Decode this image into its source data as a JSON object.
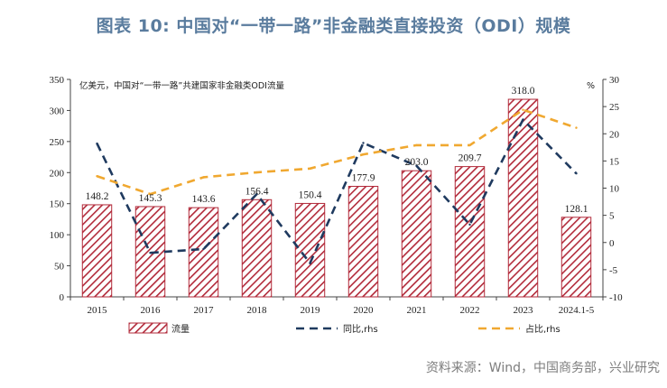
{
  "title": "图表 10: 中国对“一带一路”非金融类直接投资（ODI）规模",
  "source": "资料来源：Wind，中国商务部，兴业研究",
  "chart_data": {
    "type": "bar",
    "categories": [
      "2015",
      "2016",
      "2017",
      "2018",
      "2019",
      "2020",
      "2021",
      "2022",
      "2023",
      "2024.1-5"
    ],
    "left_note": "亿美元，中国对“一带一路”共建国家非金融类ODI流量",
    "right_unit": "%",
    "ylim": [
      0,
      350
    ],
    "yticks": [
      0,
      50,
      100,
      150,
      200,
      250,
      300,
      350
    ],
    "y2lim": [
      -10,
      30
    ],
    "y2ticks": [
      -10,
      -5,
      0,
      5,
      10,
      15,
      20,
      25,
      30
    ],
    "series": [
      {
        "name": "流量",
        "type": "bar",
        "axis": "left",
        "color": "#b22a3a",
        "values": [
          148.2,
          145.3,
          143.6,
          156.4,
          150.4,
          177.9,
          203.0,
          209.7,
          318.0,
          128.1
        ],
        "labels": [
          "148.2",
          "145.3",
          "143.6",
          "156.4",
          "150.4",
          "177.9",
          "203.0",
          "209.7",
          "318.0",
          "128.1"
        ]
      },
      {
        "name": "同比,rhs",
        "type": "line",
        "axis": "right",
        "color": "#1f3a5f",
        "dash": "dash",
        "values": [
          18.2,
          -1.9,
          -1.2,
          8.9,
          -3.8,
          18.3,
          14.1,
          3.3,
          22.6,
          12.7
        ]
      },
      {
        "name": "占比,rhs",
        "type": "line",
        "axis": "right",
        "color": "#f0a830",
        "dash": "dash",
        "values": [
          12.2,
          8.9,
          12.0,
          12.9,
          13.6,
          16.2,
          17.9,
          17.9,
          24.4,
          21.1
        ]
      }
    ],
    "legend_position": "bottom"
  }
}
